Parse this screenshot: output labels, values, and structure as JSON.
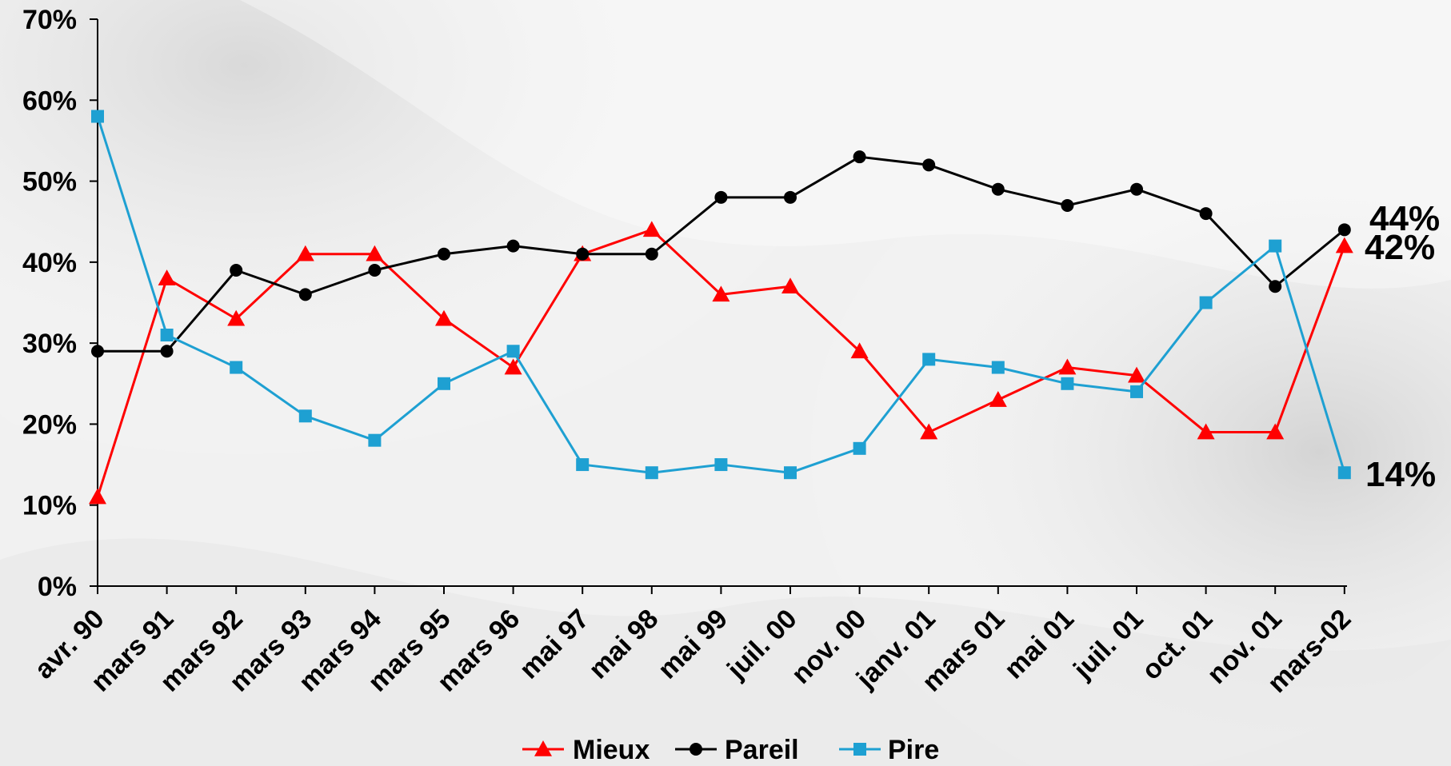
{
  "chart_data": {
    "type": "line",
    "categories": [
      "avr. 90",
      "mars 91",
      "mars 92",
      "mars 93",
      "mars 94",
      "mars 95",
      "mars 96",
      "mai 97",
      "mai 98",
      "mai 99",
      "juil. 00",
      "nov. 00",
      "janv. 01",
      "mars 01",
      "mai 01",
      "juil. 01",
      "oct. 01",
      "nov. 01",
      "mars-02"
    ],
    "ylim": [
      0,
      70
    ],
    "yticks": [
      "0%",
      "10%",
      "20%",
      "30%",
      "40%",
      "50%",
      "60%",
      "70%"
    ],
    "grid": false,
    "legend_position": "bottom",
    "series": [
      {
        "name": "Mieux",
        "color": "#ff0000",
        "marker": "triangle",
        "values": [
          11,
          38,
          33,
          41,
          41,
          33,
          27,
          41,
          44,
          36,
          37,
          29,
          19,
          23,
          27,
          26,
          19,
          19,
          42
        ]
      },
      {
        "name": "Pareil",
        "color": "#000000",
        "marker": "circle",
        "values": [
          29,
          29,
          39,
          36,
          39,
          41,
          42,
          41,
          41,
          48,
          48,
          53,
          52,
          49,
          47,
          49,
          46,
          37,
          44
        ]
      },
      {
        "name": "Pire",
        "color": "#1ea0d2",
        "marker": "square",
        "values": [
          58,
          31,
          27,
          21,
          18,
          25,
          29,
          15,
          14,
          15,
          14,
          17,
          28,
          27,
          25,
          24,
          35,
          42,
          14
        ]
      }
    ],
    "end_labels": [
      "44%",
      "42%",
      "14%"
    ]
  }
}
